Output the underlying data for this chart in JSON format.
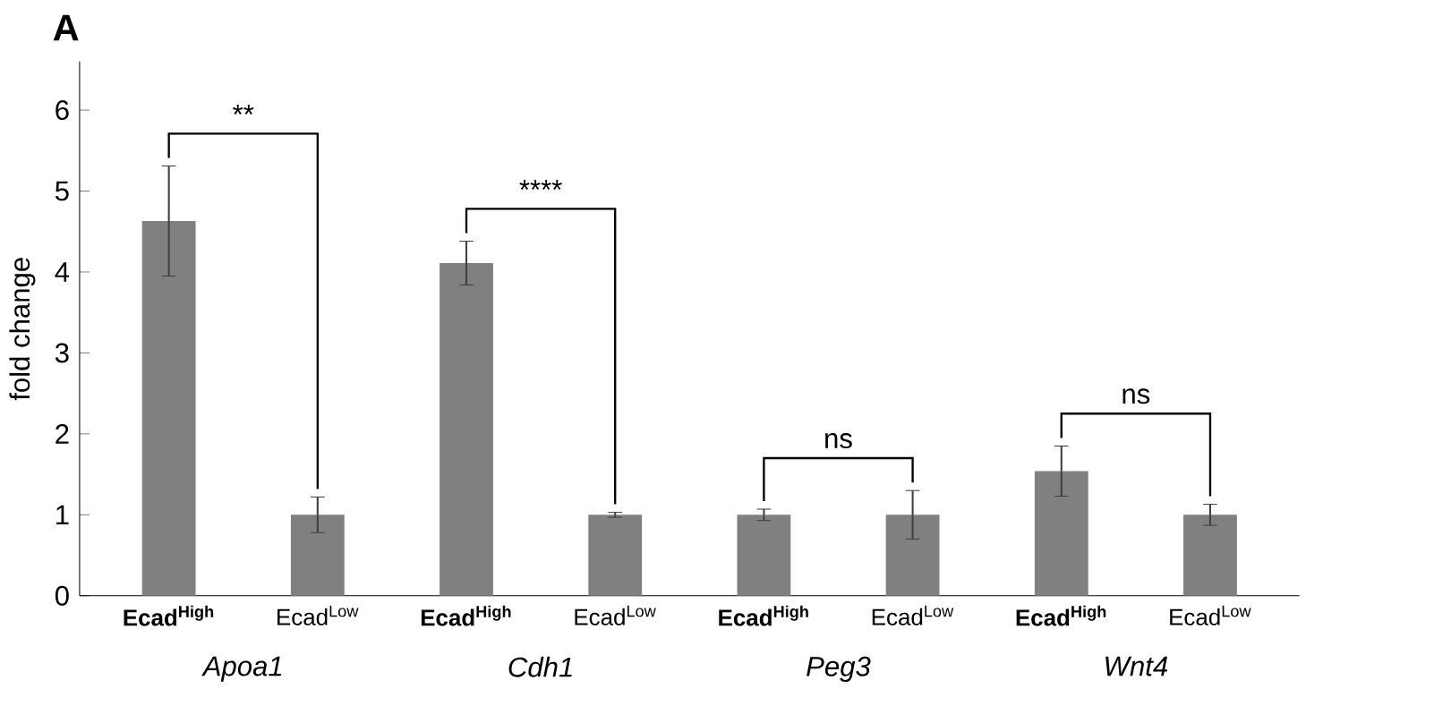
{
  "chart_data": {
    "type": "bar",
    "ylabel": "fold change",
    "categories": [
      "Ecad$^{High}$",
      "Ecad$^{Low}$",
      "Ecad$^{High}$",
      "Ecad$^{Low}$",
      "Ecad$^{High}$",
      "Ecad$^{Low}$",
      "Ecad$^{High}$",
      "Ecad$^{Low}$"
    ],
    "values": [
      4.63,
      1.0,
      4.11,
      1.0,
      1.0,
      1.0,
      1.54,
      1.0
    ],
    "errors": [
      0.68,
      0.22,
      0.27,
      0.03,
      0.07,
      0.3,
      0.31,
      0.13
    ],
    "color": "#808080",
    "ylim": [
      0,
      6.6
    ],
    "yticks": [
      0,
      1,
      2,
      3,
      4,
      5,
      6
    ],
    "annotations": [
      "A",
      "**",
      "****",
      "ns",
      "ns",
      "Apoa1",
      "Cdh1",
      "Peg3",
      "Wnt4"
    ]
  }
}
